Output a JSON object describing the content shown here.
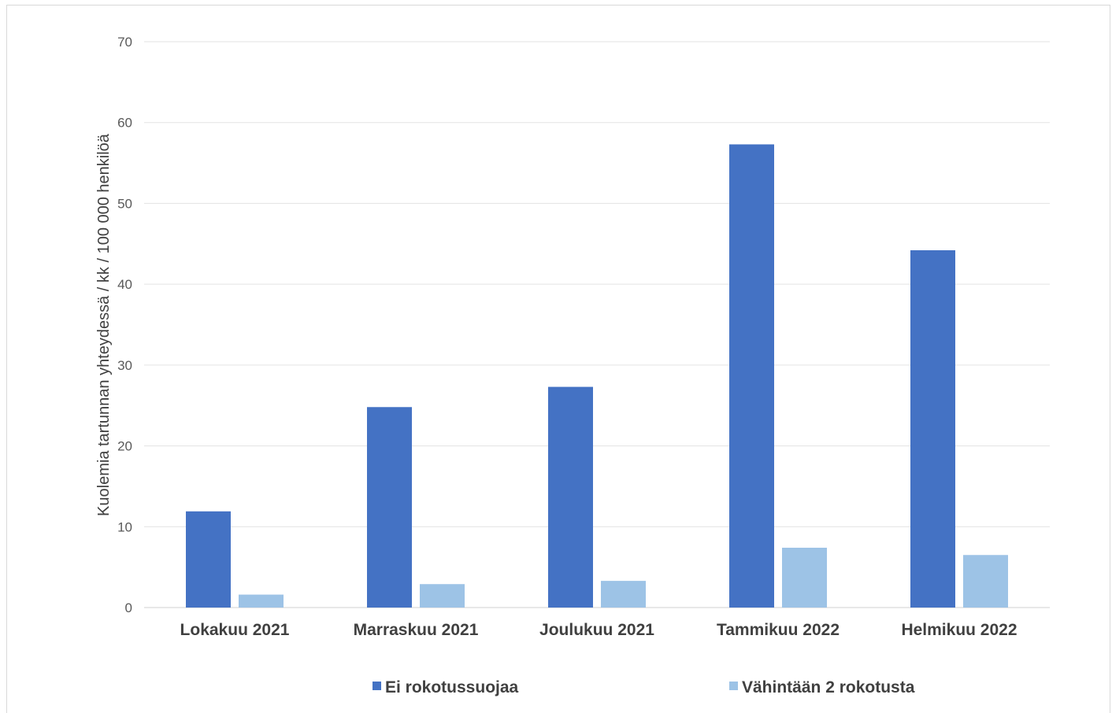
{
  "chart_data": {
    "type": "bar",
    "title": "",
    "xlabel": "",
    "ylabel": "Kuolemia tartunnan yhteydessä / kk / 100 000 henkilöä",
    "ylim": [
      0,
      70
    ],
    "yticks": [
      "0",
      "10",
      "20",
      "30",
      "40",
      "50",
      "60",
      "70"
    ],
    "grid": true,
    "legend": "bottom",
    "categories": [
      "Lokakuu 2021",
      "Marraskuu 2021",
      "Joulukuu 2021",
      "Tammikuu 2022",
      "Helmikuu 2022"
    ],
    "series": [
      {
        "name": "Ei rokotussuojaa",
        "color": "#4472c4",
        "values": [
          11.9,
          24.8,
          27.3,
          57.3,
          44.2
        ]
      },
      {
        "name": "Vähintään 2 rokotusta",
        "color": "#9dc3e6",
        "values": [
          1.6,
          2.9,
          3.3,
          7.4,
          6.5
        ]
      }
    ]
  }
}
